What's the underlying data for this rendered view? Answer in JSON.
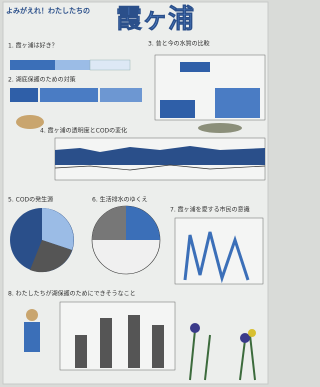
{
  "header": {
    "subtitle": "よみがえれ！わたしたちの",
    "title": "霞ヶ浦"
  },
  "sections": [
    {
      "heading": "1. 霞ヶ浦は好き？"
    },
    {
      "heading": "2. 湖底保護のための対策"
    },
    {
      "heading": "3. 昔と今の水質の比較"
    },
    {
      "heading": "4. 霞ヶ浦の透明度とCODの変化"
    },
    {
      "heading": "5. CODの発生源"
    },
    {
      "heading": "6. 生活排水のゆくえ"
    },
    {
      "heading": "7. 霞ヶ浦を愛する市民の意識"
    },
    {
      "heading": "8. わたしたちが湖保護のためにできそうなこと"
    }
  ]
}
